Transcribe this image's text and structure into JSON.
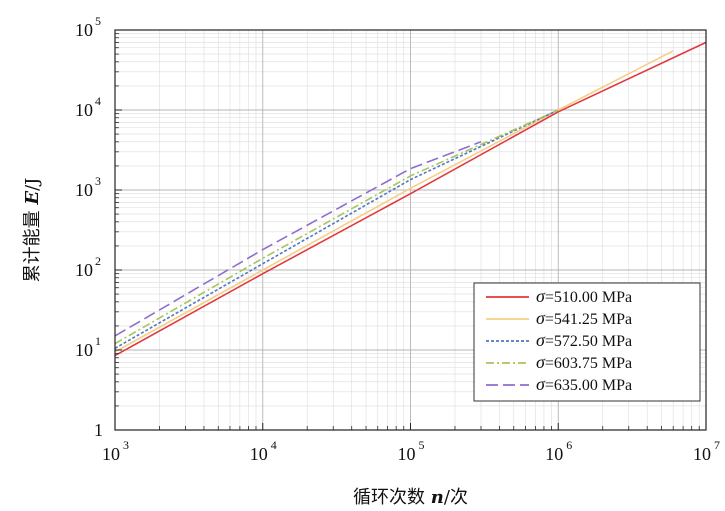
{
  "chart_data": {
    "type": "line",
    "title": "",
    "xlabel": {
      "prefix": "循环次数 ",
      "symbol": "n",
      "suffix": "/次"
    },
    "ylabel": {
      "prefix": "累计能量 ",
      "symbol": "E",
      "suffix": "/J"
    },
    "x_scale": "log",
    "y_scale": "log",
    "xlim": [
      1000,
      10000000
    ],
    "ylim": [
      1,
      100000
    ],
    "x_ticks": [
      {
        "value": 1000,
        "base": "10",
        "exp": "3"
      },
      {
        "value": 10000,
        "base": "10",
        "exp": "4"
      },
      {
        "value": 100000,
        "base": "10",
        "exp": "5"
      },
      {
        "value": 1000000,
        "base": "10",
        "exp": "6"
      },
      {
        "value": 10000000,
        "base": "10",
        "exp": "7"
      }
    ],
    "y_ticks": [
      {
        "value": 1,
        "base": "1",
        "exp": ""
      },
      {
        "value": 10,
        "base": "10",
        "exp": "1"
      },
      {
        "value": 100,
        "base": "10",
        "exp": "2"
      },
      {
        "value": 1000,
        "base": "10",
        "exp": "3"
      },
      {
        "value": 10000,
        "base": "10",
        "exp": "4"
      },
      {
        "value": 100000,
        "base": "10",
        "exp": "5"
      }
    ],
    "grid": true,
    "legend_position": "bottom-right",
    "series": [
      {
        "name": "σ=510.00 MPa",
        "symbol": "σ",
        "label": "=510.00 MPa",
        "color": "#e03a3e",
        "dash": "solid",
        "x": [
          1000,
          10000,
          100000,
          1000000,
          10000000
        ],
        "y": [
          8.5,
          90,
          900,
          9500,
          70000
        ]
      },
      {
        "name": "σ=541.25 MPa",
        "symbol": "σ",
        "label": "=541.25 MPa",
        "color": "#f5cf86",
        "dash": "solid",
        "x": [
          1000,
          10000,
          100000,
          1000000,
          6000000
        ],
        "y": [
          9.5,
          100,
          1050,
          10000,
          55000
        ]
      },
      {
        "name": "σ=572.50 MPa",
        "symbol": "σ",
        "label": "=572.50 MPa",
        "color": "#4f78c4",
        "dash": "dotted",
        "x": [
          1000,
          10000,
          100000,
          1000000
        ],
        "y": [
          10.5,
          120,
          1350,
          10000
        ]
      },
      {
        "name": "σ=603.75 MPa",
        "symbol": "σ",
        "label": "=603.75 MPa",
        "color": "#a8c45a",
        "dash": "dashdot",
        "x": [
          1000,
          10000,
          100000,
          1000000
        ],
        "y": [
          12,
          140,
          1500,
          10000
        ]
      },
      {
        "name": "σ=635.00 MPa",
        "symbol": "σ",
        "label": "=635.00 MPa",
        "color": "#8e6fcf",
        "dash": "longdash",
        "x": [
          1000,
          10000,
          100000,
          300000
        ],
        "y": [
          15,
          180,
          1850,
          4000
        ]
      }
    ]
  }
}
